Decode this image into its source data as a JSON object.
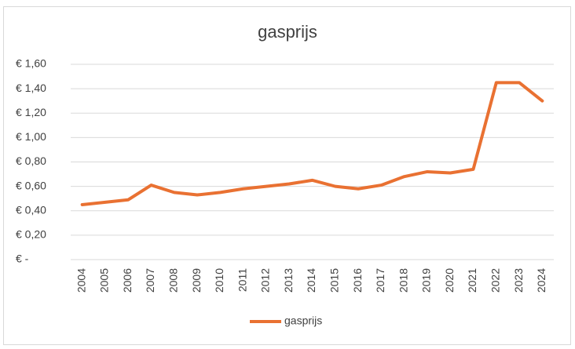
{
  "chart_data": {
    "type": "line",
    "title": "gasprijs",
    "categories": [
      "2004",
      "2005",
      "2006",
      "2007",
      "2008",
      "2009",
      "2010",
      "2011",
      "2012",
      "2013",
      "2014",
      "2015",
      "2016",
      "2017",
      "2018",
      "2019",
      "2020",
      "2021",
      "2022",
      "2023",
      "2024"
    ],
    "series": [
      {
        "name": "gasprijs",
        "color": "#e97132",
        "values": [
          0.45,
          0.47,
          0.49,
          0.61,
          0.55,
          0.53,
          0.55,
          0.58,
          0.6,
          0.62,
          0.65,
          0.6,
          0.58,
          0.61,
          0.68,
          0.72,
          0.71,
          0.74,
          1.45,
          1.45,
          1.3
        ]
      }
    ],
    "ylim": [
      0,
      1.6
    ],
    "yticks": [
      {
        "value": 0,
        "label": "€ -"
      },
      {
        "value": 0.2,
        "label": "€ 0,20"
      },
      {
        "value": 0.4,
        "label": "€ 0,40"
      },
      {
        "value": 0.6,
        "label": "€ 0,60"
      },
      {
        "value": 0.8,
        "label": "€ 0,80"
      },
      {
        "value": 1.0,
        "label": "€ 1,00"
      },
      {
        "value": 1.2,
        "label": "€ 1,20"
      },
      {
        "value": 1.4,
        "label": "€ 1,40"
      },
      {
        "value": 1.6,
        "label": "€ 1,60"
      }
    ],
    "grid": true,
    "legend": "bottom"
  }
}
